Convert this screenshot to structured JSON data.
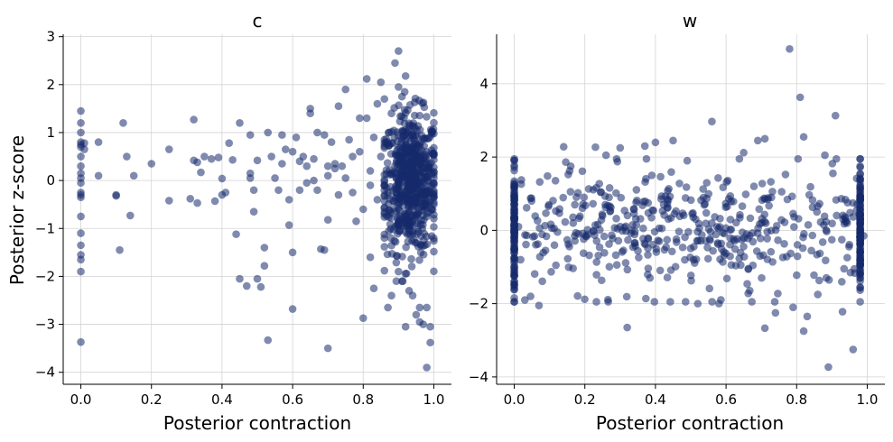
{
  "colors": {
    "point": "#162a6b",
    "grid": "#d3d3d3"
  },
  "ylabel": "Posterior z-score",
  "chart_data": [
    {
      "type": "scatter",
      "title": "c",
      "xlabel": "Posterior contraction",
      "ylabel": "Posterior z-score",
      "xlim": [
        -0.05,
        1.05
      ],
      "ylim": [
        -4.25,
        3.05
      ],
      "xticks": [
        0.0,
        0.2,
        0.4,
        0.6,
        0.8,
        1.0
      ],
      "xtick_labels": [
        "0.0",
        "0.2",
        "0.4",
        "0.6",
        "0.8",
        "1.0"
      ],
      "yticks": [
        -4,
        -3,
        -2,
        -1,
        0,
        1,
        2,
        3
      ],
      "ytick_labels": [
        "−4",
        "−3",
        "−2",
        "−1",
        "0",
        "1",
        "2",
        "3"
      ],
      "grid": true,
      "point_alpha": 0.55,
      "points": [
        [
          0.0,
          1.45
        ],
        [
          0.0,
          1.2
        ],
        [
          0.0,
          1.0
        ],
        [
          0.0,
          0.8
        ],
        [
          0.0,
          0.75
        ],
        [
          0.0,
          0.7
        ],
        [
          0.0,
          0.5
        ],
        [
          0.0,
          0.3
        ],
        [
          0.0,
          0.15
        ],
        [
          0.0,
          0.05
        ],
        [
          0.0,
          -0.05
        ],
        [
          0.0,
          -0.25
        ],
        [
          0.0,
          -0.3
        ],
        [
          0.0,
          -0.35
        ],
        [
          0.0,
          -0.75
        ],
        [
          0.0,
          -1.1
        ],
        [
          0.0,
          -1.35
        ],
        [
          0.0,
          -1.55
        ],
        [
          0.0,
          -1.65
        ],
        [
          0.0,
          -1.9
        ],
        [
          0.0,
          -3.37
        ],
        [
          0.01,
          0.78
        ],
        [
          0.01,
          0.65
        ],
        [
          0.05,
          0.8
        ],
        [
          0.05,
          0.1
        ],
        [
          0.1,
          -0.3
        ],
        [
          0.1,
          -0.32
        ],
        [
          0.11,
          -1.45
        ],
        [
          0.12,
          1.2
        ],
        [
          0.13,
          0.5
        ],
        [
          0.14,
          -0.73
        ],
        [
          0.15,
          0.1
        ],
        [
          0.2,
          0.35
        ],
        [
          0.25,
          0.65
        ],
        [
          0.25,
          -0.42
        ],
        [
          0.31,
          -0.38
        ],
        [
          0.32,
          1.27
        ],
        [
          0.32,
          0.42
        ],
        [
          0.33,
          0.38
        ],
        [
          0.33,
          -0.47
        ],
        [
          0.34,
          0.17
        ],
        [
          0.35,
          0.5
        ],
        [
          0.37,
          0.45
        ],
        [
          0.38,
          -0.43
        ],
        [
          0.39,
          0.48
        ],
        [
          0.4,
          0.04
        ],
        [
          0.4,
          -0.3
        ],
        [
          0.41,
          -0.25
        ],
        [
          0.42,
          0.78
        ],
        [
          0.43,
          0.43
        ],
        [
          0.44,
          -1.12
        ],
        [
          0.45,
          1.2
        ],
        [
          0.45,
          -2.05
        ],
        [
          0.47,
          -2.2
        ],
        [
          0.48,
          0.95
        ],
        [
          0.48,
          0.15
        ],
        [
          0.48,
          0.05
        ],
        [
          0.49,
          -0.2
        ],
        [
          0.49,
          -0.65
        ],
        [
          0.5,
          0.42
        ],
        [
          0.5,
          -2.05
        ],
        [
          0.51,
          -2.22
        ],
        [
          0.52,
          -1.4
        ],
        [
          0.52,
          -1.78
        ],
        [
          0.53,
          1.0
        ],
        [
          0.53,
          -3.33
        ],
        [
          0.54,
          0.5
        ],
        [
          0.55,
          0.05
        ],
        [
          0.56,
          -0.2
        ],
        [
          0.57,
          0.95
        ],
        [
          0.57,
          0.35
        ],
        [
          0.58,
          0.65
        ],
        [
          0.59,
          -0.4
        ],
        [
          0.59,
          -0.93
        ],
        [
          0.6,
          0.6
        ],
        [
          0.6,
          -1.5
        ],
        [
          0.6,
          -2.68
        ],
        [
          0.61,
          0.9
        ],
        [
          0.62,
          0.4
        ],
        [
          0.62,
          -0.2
        ],
        [
          0.63,
          0.5
        ],
        [
          0.64,
          0.3
        ],
        [
          0.64,
          -0.05
        ],
        [
          0.65,
          1.5
        ],
        [
          0.65,
          1.4
        ],
        [
          0.66,
          0.45
        ],
        [
          0.66,
          0.0
        ],
        [
          0.67,
          1.0
        ],
        [
          0.67,
          -0.2
        ],
        [
          0.68,
          -1.43
        ],
        [
          0.69,
          0.95
        ],
        [
          0.69,
          -1.45
        ],
        [
          0.7,
          0.3
        ],
        [
          0.7,
          0.1
        ],
        [
          0.7,
          -0.82
        ],
        [
          0.7,
          -3.5
        ],
        [
          0.71,
          0.8
        ],
        [
          0.72,
          0.35
        ],
        [
          0.72,
          0.25
        ],
        [
          0.73,
          1.55
        ],
        [
          0.73,
          -0.3
        ],
        [
          0.74,
          0.3
        ],
        [
          0.75,
          1.9
        ],
        [
          0.75,
          0.05
        ],
        [
          0.76,
          0.85
        ],
        [
          0.77,
          0.5
        ],
        [
          0.77,
          -0.25
        ],
        [
          0.78,
          -0.85
        ],
        [
          0.79,
          1.3
        ],
        [
          0.79,
          0.6
        ],
        [
          0.8,
          -0.6
        ],
        [
          0.8,
          -2.87
        ],
        [
          0.81,
          2.12
        ],
        [
          0.81,
          1.3
        ],
        [
          0.82,
          0.2
        ],
        [
          0.82,
          -0.1
        ],
        [
          0.82,
          -1.6
        ],
        [
          0.83,
          0.9
        ],
        [
          0.83,
          -2.25
        ],
        [
          0.84,
          1.6
        ],
        [
          0.84,
          -0.4
        ],
        [
          0.85,
          2.05
        ],
        [
          0.85,
          0.5
        ],
        [
          0.86,
          1.7
        ],
        [
          0.86,
          -1.2
        ],
        [
          0.87,
          0.8
        ],
        [
          0.87,
          -2.65
        ],
        [
          0.88,
          1.4
        ],
        [
          0.88,
          -2.4
        ],
        [
          0.89,
          2.45
        ],
        [
          0.89,
          0.3
        ],
        [
          0.9,
          2.7
        ],
        [
          0.9,
          1.95
        ],
        [
          0.9,
          -1.9
        ],
        [
          0.91,
          0.9
        ],
        [
          0.91,
          -2.1
        ],
        [
          0.92,
          2.18
        ],
        [
          0.92,
          -3.05
        ],
        [
          0.93,
          -2.3
        ],
        [
          0.94,
          -2.4
        ],
        [
          0.95,
          -2.8
        ],
        [
          0.96,
          -2.95
        ],
        [
          0.96,
          -2.65
        ],
        [
          0.97,
          -3.0
        ],
        [
          0.98,
          -3.9
        ],
        [
          0.98,
          -2.65
        ],
        [
          0.99,
          -3.38
        ],
        [
          0.99,
          -3.05
        ]
      ],
      "dense_cluster": {
        "x_range": [
          0.86,
          1.0
        ],
        "y_range": [
          -2.1,
          1.85
        ],
        "count": 650,
        "note_x_center": 0.935,
        "x_spread": 0.04,
        "y_center": -0.05,
        "y_spread": 0.72
      }
    },
    {
      "type": "scatter",
      "title": "w",
      "xlabel": "Posterior contraction",
      "ylabel": "",
      "xlim": [
        -0.05,
        1.05
      ],
      "ylim": [
        -4.2,
        5.35
      ],
      "xticks": [
        0.0,
        0.2,
        0.4,
        0.6,
        0.8,
        1.0
      ],
      "xtick_labels": [
        "0.0",
        "0.2",
        "0.4",
        "0.6",
        "0.8",
        "1.0"
      ],
      "yticks": [
        -4,
        -2,
        0,
        2,
        4
      ],
      "ytick_labels": [
        "−4",
        "−2",
        "0",
        "2",
        "4"
      ],
      "grid": true,
      "point_alpha": 0.55,
      "points": [
        [
          0.0,
          1.72
        ],
        [
          0.0,
          -1.55
        ],
        [
          0.0,
          1.2
        ],
        [
          0.0,
          -0.5
        ],
        [
          0.03,
          -1.9
        ],
        [
          0.07,
          -2.05
        ],
        [
          0.14,
          2.28
        ],
        [
          0.16,
          1.75
        ],
        [
          0.23,
          2.27
        ],
        [
          0.26,
          2.05
        ],
        [
          0.3,
          2.25
        ],
        [
          0.32,
          -2.65
        ],
        [
          0.37,
          2.3
        ],
        [
          0.4,
          2.4
        ],
        [
          0.45,
          2.45
        ],
        [
          0.49,
          1.9
        ],
        [
          0.52,
          -2.0
        ],
        [
          0.56,
          2.97
        ],
        [
          0.58,
          -2.0
        ],
        [
          0.65,
          2.12
        ],
        [
          0.69,
          2.45
        ],
        [
          0.71,
          2.5
        ],
        [
          0.71,
          -2.67
        ],
        [
          0.74,
          -2.25
        ],
        [
          0.78,
          4.95
        ],
        [
          0.79,
          -2.1
        ],
        [
          0.81,
          3.63
        ],
        [
          0.82,
          -2.75
        ],
        [
          0.82,
          2.55
        ],
        [
          0.83,
          -2.35
        ],
        [
          0.86,
          -1.75
        ],
        [
          0.88,
          2.05
        ],
        [
          0.89,
          -3.73
        ],
        [
          0.91,
          3.13
        ],
        [
          0.93,
          -2.22
        ],
        [
          0.96,
          -3.25
        ],
        [
          0.98,
          0.85
        ],
        [
          0.99,
          -0.15
        ],
        [
          0.97,
          0.55
        ],
        [
          0.0,
          0.55
        ],
        [
          0.0,
          0.15
        ],
        [
          0.0,
          -0.9
        ]
      ],
      "dense_cluster": {
        "x_range": [
          0.0,
          0.98
        ],
        "y_range": [
          -1.95,
          1.95
        ],
        "count": 700,
        "note_x_center": 0.49,
        "x_spread": 0.49,
        "y_center": 0.0,
        "y_spread": 0.85
      }
    }
  ]
}
